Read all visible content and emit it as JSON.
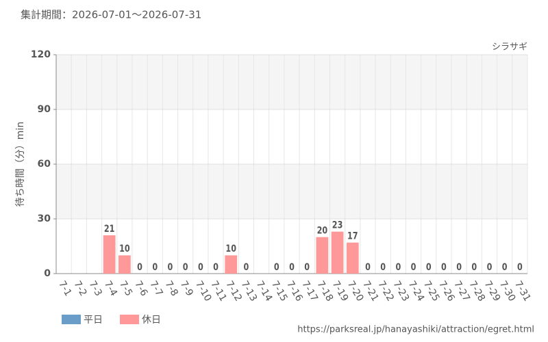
{
  "chart_data": {
    "type": "bar",
    "title": "集計期間：2026-07-01～2026-07-31",
    "subtitle": "シラサギ",
    "y_label": "待ち時間（分）min",
    "source": "https://parksreal.jp/hanayashiki/attraction/egret.html",
    "categories": [
      "7-1",
      "7-2",
      "7-3",
      "7-4",
      "7-5",
      "7-6",
      "7-7",
      "7-8",
      "7-9",
      "7-10",
      "7-11",
      "7-12",
      "7-13",
      "7-14",
      "7-15",
      "7-16",
      "7-17",
      "7-18",
      "7-19",
      "7-20",
      "7-21",
      "7-22",
      "7-23",
      "7-24",
      "7-25",
      "7-26",
      "7-27",
      "7-28",
      "7-29",
      "7-30",
      "7-31"
    ],
    "series": [
      {
        "name": "平日",
        "color": "#6a9ec9",
        "values": [
          null,
          null,
          null,
          null,
          null,
          0,
          0,
          0,
          0,
          0,
          null,
          null,
          0,
          null,
          0,
          0,
          0,
          null,
          null,
          null,
          0,
          0,
          0,
          0,
          null,
          null,
          0,
          0,
          0,
          0,
          0
        ]
      },
      {
        "name": "休日",
        "color": "#ff9999",
        "values": [
          null,
          null,
          null,
          21,
          10,
          null,
          null,
          null,
          null,
          null,
          0,
          10,
          null,
          null,
          null,
          null,
          null,
          20,
          23,
          17,
          null,
          null,
          null,
          null,
          0,
          0,
          null,
          null,
          null,
          null,
          null
        ]
      }
    ],
    "ylim": [
      0,
      120
    ],
    "yticks": [
      0,
      30,
      60,
      90,
      120
    ],
    "grid": true
  }
}
